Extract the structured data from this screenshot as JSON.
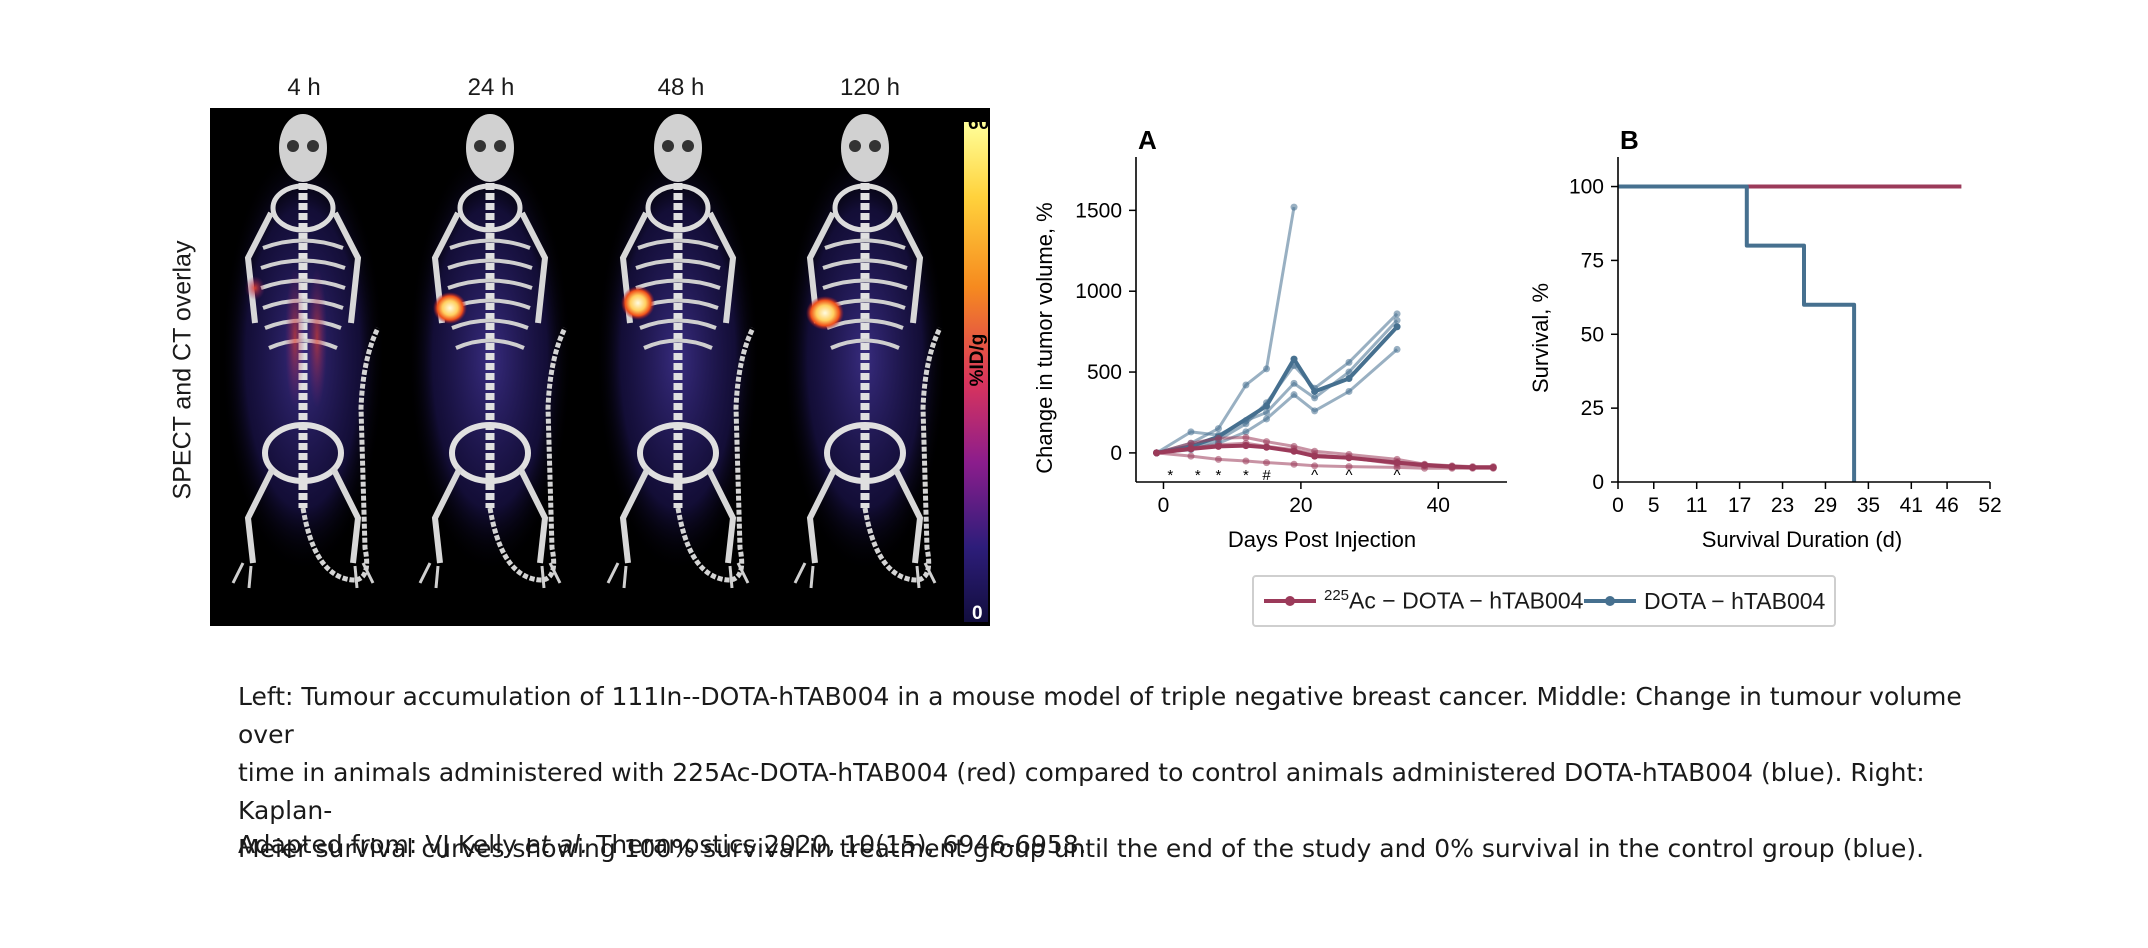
{
  "imaging": {
    "timepoints": [
      "4 h",
      "24 h",
      "48 h",
      "120 h"
    ],
    "ylabel": "SPECT and CT overlay",
    "colorbar": {
      "max_label": "60",
      "min_label": "0",
      "unit": "%ID/g"
    }
  },
  "chart_data": [
    {
      "type": "line",
      "panel_label": "A",
      "xlabel": "Days Post Injection",
      "ylabel": "Change in tumor volume, %",
      "xlim": [
        -4,
        50
      ],
      "ylim": [
        -180,
        1830
      ],
      "xticks": [
        0,
        20,
        40
      ],
      "yticks": [
        0,
        500,
        1000,
        1500
      ],
      "significance_markers": [
        {
          "x": 1,
          "label": "*"
        },
        {
          "x": 5,
          "label": "*"
        },
        {
          "x": 8,
          "label": "*"
        },
        {
          "x": 12,
          "label": "*"
        },
        {
          "x": 15,
          "label": "#"
        },
        {
          "x": 22,
          "label": "^"
        },
        {
          "x": 27,
          "label": "^"
        },
        {
          "x": 34,
          "label": "^"
        }
      ],
      "series": [
        {
          "group": "DOTA-hTAB004",
          "color": "#46708f",
          "role": "mean",
          "x": [
            -1,
            4,
            8,
            15,
            19,
            22,
            27,
            34
          ],
          "y": [
            0,
            40,
            100,
            290,
            580,
            380,
            460,
            780
          ]
        },
        {
          "group": "DOTA-hTAB004",
          "color": "#46708f",
          "role": "individual",
          "x": [
            -1,
            4,
            8,
            12,
            15,
            19
          ],
          "y": [
            0,
            60,
            150,
            420,
            520,
            1520
          ]
        },
        {
          "group": "DOTA-hTAB004",
          "color": "#46708f",
          "role": "individual",
          "x": [
            -1,
            4,
            8,
            12,
            15,
            19,
            22,
            27,
            34
          ],
          "y": [
            0,
            30,
            80,
            180,
            310,
            540,
            400,
            560,
            860
          ]
        },
        {
          "group": "DOTA-hTAB004",
          "color": "#46708f",
          "role": "individual",
          "x": [
            -1,
            4,
            8,
            12,
            15,
            19,
            22,
            27,
            34
          ],
          "y": [
            0,
            130,
            110,
            200,
            250,
            430,
            340,
            500,
            820
          ]
        },
        {
          "group": "DOTA-hTAB004",
          "color": "#46708f",
          "role": "individual",
          "x": [
            -1,
            4,
            8,
            12,
            15,
            19,
            22,
            27,
            34
          ],
          "y": [
            0,
            20,
            60,
            130,
            210,
            360,
            260,
            380,
            640
          ]
        },
        {
          "group": "225Ac-DOTA-hTAB004",
          "color": "#9b3a5a",
          "role": "mean",
          "x": [
            -1,
            4,
            8,
            12,
            15,
            19,
            22,
            27,
            34,
            38,
            42,
            45,
            48
          ],
          "y": [
            0,
            25,
            40,
            45,
            35,
            10,
            -20,
            -30,
            -60,
            -75,
            -85,
            -90,
            -90
          ]
        },
        {
          "group": "225Ac-DOTA-hTAB004",
          "color": "#9b3a5a",
          "role": "individual",
          "x": [
            -1,
            4,
            8,
            12,
            15,
            19,
            22,
            27,
            34,
            38,
            42,
            45,
            48
          ],
          "y": [
            0,
            60,
            90,
            95,
            70,
            40,
            10,
            -10,
            -40,
            -70,
            -80,
            -85,
            -85
          ]
        },
        {
          "group": "225Ac-DOTA-hTAB004",
          "color": "#9b3a5a",
          "role": "individual",
          "x": [
            -1,
            4,
            8,
            12,
            15,
            19,
            22,
            27,
            34,
            38,
            42,
            45,
            48
          ],
          "y": [
            0,
            -20,
            -40,
            -50,
            -60,
            -70,
            -80,
            -85,
            -90,
            -95,
            -95,
            -95,
            -95
          ]
        },
        {
          "group": "225Ac-DOTA-hTAB004",
          "color": "#9b3a5a",
          "role": "individual",
          "x": [
            -1,
            4,
            8,
            12,
            15,
            19,
            22,
            27,
            34,
            38,
            42,
            45,
            48
          ],
          "y": [
            0,
            30,
            50,
            60,
            40,
            20,
            -10,
            -30,
            -70,
            -80,
            -90,
            -90,
            -92
          ]
        }
      ]
    },
    {
      "type": "line",
      "panel_label": "B",
      "xlabel": "Survival Duration (d)",
      "ylabel": "Survival, %",
      "xlim": [
        0,
        52
      ],
      "ylim": [
        0,
        110
      ],
      "xticks": [
        0,
        5,
        11,
        17,
        23,
        29,
        35,
        41,
        46,
        52
      ],
      "yticks": [
        0,
        25,
        50,
        75,
        100
      ],
      "series": [
        {
          "group": "225Ac-DOTA-hTAB004",
          "color": "#9b3a5a",
          "x": [
            0,
            48
          ],
          "y": [
            100,
            100
          ]
        },
        {
          "group": "DOTA-hTAB004",
          "color": "#46708f",
          "x": [
            0,
            18,
            18,
            26,
            26,
            33,
            33
          ],
          "y": [
            100,
            100,
            80,
            80,
            60,
            60,
            0
          ]
        }
      ]
    }
  ],
  "legend": {
    "item1": {
      "sup": "225",
      "text": "Ac − DOTA − hTAB004",
      "color": "#9b3a5a"
    },
    "item2": {
      "text": "DOTA − hTAB004",
      "color": "#46708f"
    }
  },
  "caption": {
    "line1": "Left: Tumour accumulation of 111In--DOTA-hTAB004 in a mouse model of triple negative breast cancer. Middle: Change in tumour volume over",
    "line2": "time in animals administered with 225Ac-DOTA-hTAB004 (red) compared to control animals administered DOTA-hTAB004 (blue). Right: Kaplan-",
    "line3": "Meier survival curves showing 100% survival in treatment group until the end of the study and 0% survival in the control group (blue).",
    "source_prefix": "Adapted from: VJ Kelly ",
    "source_italic": "et al.",
    "source_suffix": " Theranostics 2020, 10(15), 6946-6958."
  }
}
